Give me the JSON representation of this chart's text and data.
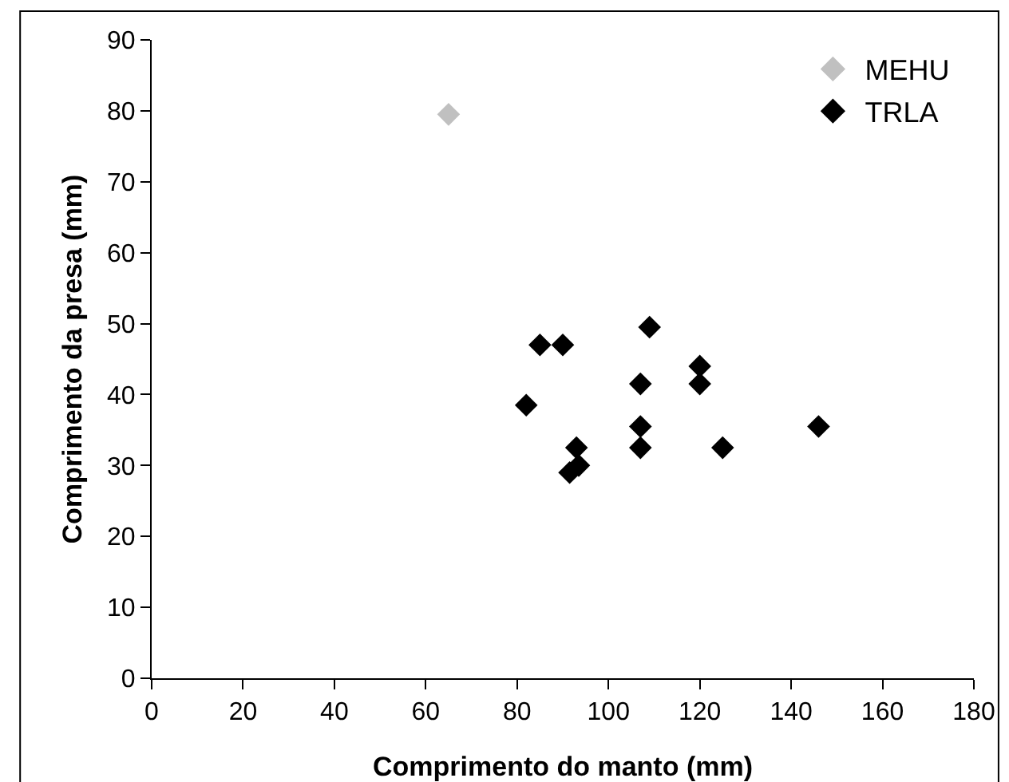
{
  "chart_data": {
    "type": "scatter",
    "xlabel": "Comprimento do manto (mm)",
    "ylabel": "Comprimento da presa (mm)",
    "series": [
      {
        "name": "MEHU",
        "color": "#c0c0c0",
        "x": [
          65
        ],
        "values": [
          79.5
        ]
      },
      {
        "name": "TRLA",
        "color": "#000000",
        "x": [
          82,
          85,
          90,
          93,
          91.5,
          93.5,
          107,
          107,
          107,
          109,
          120,
          120,
          125,
          146
        ],
        "values": [
          38.5,
          47,
          47,
          32.5,
          29,
          30,
          41.5,
          35.5,
          32.5,
          49.5,
          44,
          41.5,
          32.5,
          35.5
        ]
      }
    ],
    "xlim": [
      0,
      180
    ],
    "xticks": [
      0,
      20,
      40,
      60,
      80,
      100,
      120,
      140,
      160,
      180
    ],
    "ylim": [
      0,
      90
    ],
    "yticks": [
      0,
      10,
      20,
      30,
      40,
      50,
      60,
      70,
      80,
      90
    ],
    "grid": false,
    "legend": "top right",
    "marker": "diamond"
  }
}
